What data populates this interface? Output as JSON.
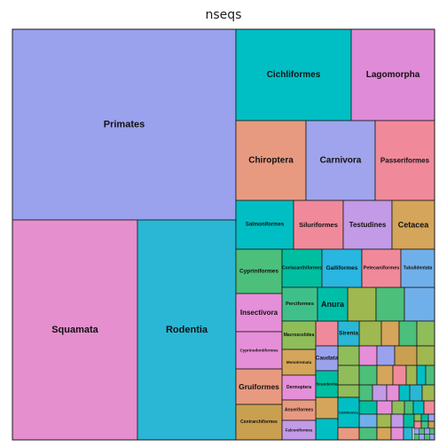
{
  "chart_data": {
    "type": "treemap",
    "title": "nseqs",
    "tiles": [
      {
        "label": "Primates",
        "color": "#9aa2ee"
      },
      {
        "label": "Squamata",
        "color": "#e58fcf"
      },
      {
        "label": "Rodentia",
        "color": "#2ab7d6"
      },
      {
        "label": "Cichliformes",
        "color": "#00bfc4"
      },
      {
        "label": "Lagomorpha",
        "color": "#e08bd8"
      },
      {
        "label": "Chiroptera",
        "color": "#e89a80"
      },
      {
        "label": "Carnivora",
        "color": "#a0a4ec"
      },
      {
        "label": "Passeriformes",
        "color": "#f08a9a"
      },
      {
        "label": "Salmoniformes",
        "color": "#00bfc4"
      },
      {
        "label": "Siluriformes",
        "color": "#f08a9a"
      },
      {
        "label": "Testudines",
        "color": "#c29ae6"
      },
      {
        "label": "Cetacea",
        "color": "#d4a55a"
      },
      {
        "label": "Cypriniformes",
        "color": "#4cbf7a"
      },
      {
        "label": "Coelacanthiformes",
        "color": "#00bfa0"
      },
      {
        "label": "Galliformes",
        "color": "#29b6e0"
      },
      {
        "label": "Pelecaniformes",
        "color": "#f08a9a"
      },
      {
        "label": "Tubulidentata",
        "color": "#70b0ea"
      },
      {
        "label": "Insectivora",
        "color": "#e58fd8"
      },
      {
        "label": "Perciformes",
        "color": "#3fc08a"
      },
      {
        "label": "Anura",
        "color": "#00bfa8"
      },
      {
        "label": "Cyprinodontiformes",
        "color": "#e58fd8"
      },
      {
        "label": "Macroscelidea",
        "color": "#8fbd5a"
      },
      {
        "label": "Sirenia",
        "color": "#2ab7d6"
      },
      {
        "label": "Monotremata",
        "color": "#d4a55a"
      },
      {
        "label": "Caudata",
        "color": "#9aa2ee"
      },
      {
        "label": "Gruiformes",
        "color": "#e89a80"
      },
      {
        "label": "Dermoptera",
        "color": "#e58fd8"
      },
      {
        "label": "Scandentia",
        "color": "#00bfa0"
      },
      {
        "label": "Anseriformes",
        "color": "#e89a80"
      },
      {
        "label": "Centrarchiformes",
        "color": "#c9a050"
      },
      {
        "label": "Falconiformes",
        "color": "#c29ae6"
      },
      {
        "label": "Colliformes",
        "color": "#00bfc4"
      }
    ],
    "minor_tiles": [
      {
        "color": "#9fb84f"
      },
      {
        "color": "#4cbf7a"
      },
      {
        "color": "#70b0ea"
      },
      {
        "color": "#f08a9a"
      },
      {
        "color": "#9fb84f"
      },
      {
        "color": "#d4a55a"
      },
      {
        "color": "#4cbf7a"
      },
      {
        "color": "#8fbd5a"
      },
      {
        "color": "#8fbd5a"
      },
      {
        "color": "#e58fd8"
      },
      {
        "color": "#9aa2ee"
      },
      {
        "color": "#c9a050"
      },
      {
        "color": "#9fb84f"
      },
      {
        "color": "#8fbd5a"
      },
      {
        "color": "#4cbf7a"
      },
      {
        "color": "#d4a55a"
      },
      {
        "color": "#f08a9a"
      },
      {
        "color": "#9fb84f"
      },
      {
        "color": "#00bfc4"
      },
      {
        "color": "#4cbf7a"
      },
      {
        "color": "#8fbd5a"
      },
      {
        "color": "#4cbf7a"
      },
      {
        "color": "#c29ae6"
      },
      {
        "color": "#e58fd8"
      },
      {
        "color": "#00bfc4"
      },
      {
        "color": "#2ab7d6"
      },
      {
        "color": "#9fb84f"
      },
      {
        "color": "#d4a55a"
      },
      {
        "color": "#00bfa0"
      },
      {
        "color": "#e58fd8"
      },
      {
        "color": "#8fbd5a"
      },
      {
        "color": "#4cbf7a"
      },
      {
        "color": "#00bfc4"
      },
      {
        "color": "#f08a9a"
      },
      {
        "color": "#70b0ea"
      },
      {
        "color": "#9fb84f"
      },
      {
        "color": "#c29ae6"
      },
      {
        "color": "#00bfa0"
      },
      {
        "color": "#00bfc4"
      },
      {
        "color": "#e89a80"
      },
      {
        "color": "#4cbf7a"
      },
      {
        "color": "#d4a55a"
      },
      {
        "color": "#e58fd8"
      },
      {
        "color": "#2ab7d6"
      },
      {
        "color": "#8fbd5a"
      },
      {
        "color": "#00bfa0"
      },
      {
        "color": "#9aa2ee"
      },
      {
        "color": "#f08a9a"
      },
      {
        "color": "#4cbf7a"
      },
      {
        "color": "#c9a050"
      }
    ]
  }
}
